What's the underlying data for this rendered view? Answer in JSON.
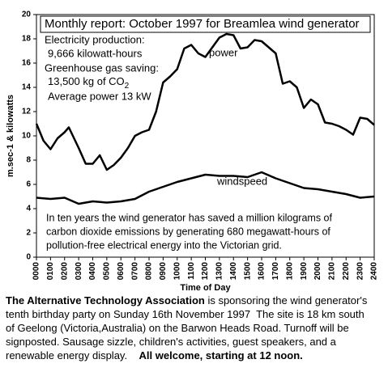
{
  "chart_data": {
    "type": "line",
    "title": "Monthly report: October 1997 for Breamlea wind generator",
    "annotations": [
      "Electricity production:",
      "9,666 kilowatt-hours",
      "Greenhouse gas saving:",
      "Average power 13 kW"
    ],
    "co2_line": [
      "13,500 kg of CO",
      "2"
    ],
    "note": [
      "In ten years the wind generator has saved a million kilograms of",
      "carbon dioxide emissions by generating 680 megawatt-hours of",
      "pollution-free electrical energy into the Victorian grid."
    ],
    "x_label": "Time of Day",
    "y_label": "m.sec-1 & kilowatts",
    "xlim": [
      0,
      24
    ],
    "ylim": [
      0,
      20
    ],
    "yticks": [
      0,
      2,
      4,
      6,
      8,
      10,
      12,
      14,
      16,
      18,
      20
    ],
    "xticks": [
      {
        "value": 0,
        "label": "0000"
      },
      {
        "value": 1,
        "label": "0100"
      },
      {
        "value": 2,
        "label": "0200"
      },
      {
        "value": 3,
        "label": "0300"
      },
      {
        "value": 4,
        "label": "0400"
      },
      {
        "value": 5,
        "label": "0500"
      },
      {
        "value": 6,
        "label": "0600"
      },
      {
        "value": 7,
        "label": "0700"
      },
      {
        "value": 8,
        "label": "0800"
      },
      {
        "value": 9,
        "label": "0900"
      },
      {
        "value": 10,
        "label": "1000"
      },
      {
        "value": 11,
        "label": "1100"
      },
      {
        "value": 12,
        "label": "1200"
      },
      {
        "value": 13,
        "label": "1300"
      },
      {
        "value": 14,
        "label": "1400"
      },
      {
        "value": 15,
        "label": "1500"
      },
      {
        "value": 16,
        "label": "1600"
      },
      {
        "value": 17,
        "label": "1700"
      },
      {
        "value": 18,
        "label": "1800"
      },
      {
        "value": 19,
        "label": "1900"
      },
      {
        "value": 20,
        "label": "2000"
      },
      {
        "value": 21,
        "label": "2100"
      },
      {
        "value": 22,
        "label": "2200"
      },
      {
        "value": 23,
        "label": "2300"
      },
      {
        "value": 24,
        "label": "2400"
      }
    ],
    "series": [
      {
        "name": "power",
        "color": "#000000",
        "x": [
          0,
          0.5,
          1,
          1.5,
          2,
          2.3,
          3,
          3.5,
          4,
          4.5,
          5,
          5.5,
          6,
          6.5,
          7,
          7.5,
          8,
          8.5,
          9,
          9.5,
          10,
          10.5,
          11,
          11.5,
          12,
          12.5,
          13,
          13.5,
          14,
          14.5,
          15,
          15.5,
          16,
          16.5,
          17,
          17.5,
          18,
          18.5,
          19,
          19.5,
          20,
          20.5,
          21,
          21.5,
          22,
          22.5,
          23,
          23.5,
          24
        ],
        "values": [
          11,
          9.6,
          8.9,
          9.8,
          10.3,
          10.7,
          9.0,
          7.7,
          7.7,
          8.4,
          7.2,
          7.6,
          8.2,
          9.0,
          10.0,
          10.3,
          10.5,
          12,
          14.4,
          14.9,
          15.5,
          17.2,
          17.5,
          16.8,
          16.5,
          17.3,
          18.1,
          18.4,
          18.3,
          17.2,
          17.3,
          17.9,
          17.8,
          17.3,
          16.8,
          14.3,
          14.5,
          14,
          12.3,
          13,
          12.6,
          11.1,
          11,
          10.8,
          10.5,
          10.1,
          11.5,
          11.4,
          10.9
        ]
      },
      {
        "name": "windspeed",
        "color": "#000000",
        "x": [
          0,
          1,
          2,
          3,
          4,
          5,
          6,
          7,
          8,
          9,
          10,
          11,
          12,
          13,
          14,
          15,
          16,
          17,
          18,
          19,
          20,
          21,
          22,
          23,
          24
        ],
        "values": [
          4.9,
          4.8,
          4.9,
          4.4,
          4.6,
          4.5,
          4.6,
          4.8,
          5.4,
          5.8,
          6.2,
          6.5,
          6.8,
          6.7,
          6.7,
          6.6,
          7.0,
          6.5,
          6.1,
          5.7,
          5.6,
          5.4,
          5.2,
          4.9,
          5.0
        ]
      }
    ]
  },
  "footer": {
    "lines": [
      [
        {
          "text": "The Alternative Technology Association",
          "bold": true
        },
        {
          "text": " is sponsoring the wind generator's",
          "bold": false
        }
      ],
      [
        {
          "text": "tenth birthday party on Sunday 16th November 1997  The site is 18 km south",
          "bold": false
        }
      ],
      [
        {
          "text": "of Geelong (Victoria,Australia) on the Barwon Heads Road. Turnoff will be",
          "bold": false
        }
      ],
      [
        {
          "text": "signposted. Sausage sizzle, children's activities, guest speakers, and a",
          "bold": false
        }
      ],
      [
        {
          "text": "renewable energy display.    ",
          "bold": false
        },
        {
          "text": "All welcome, starting at 12 noon.",
          "bold": true
        }
      ]
    ]
  }
}
